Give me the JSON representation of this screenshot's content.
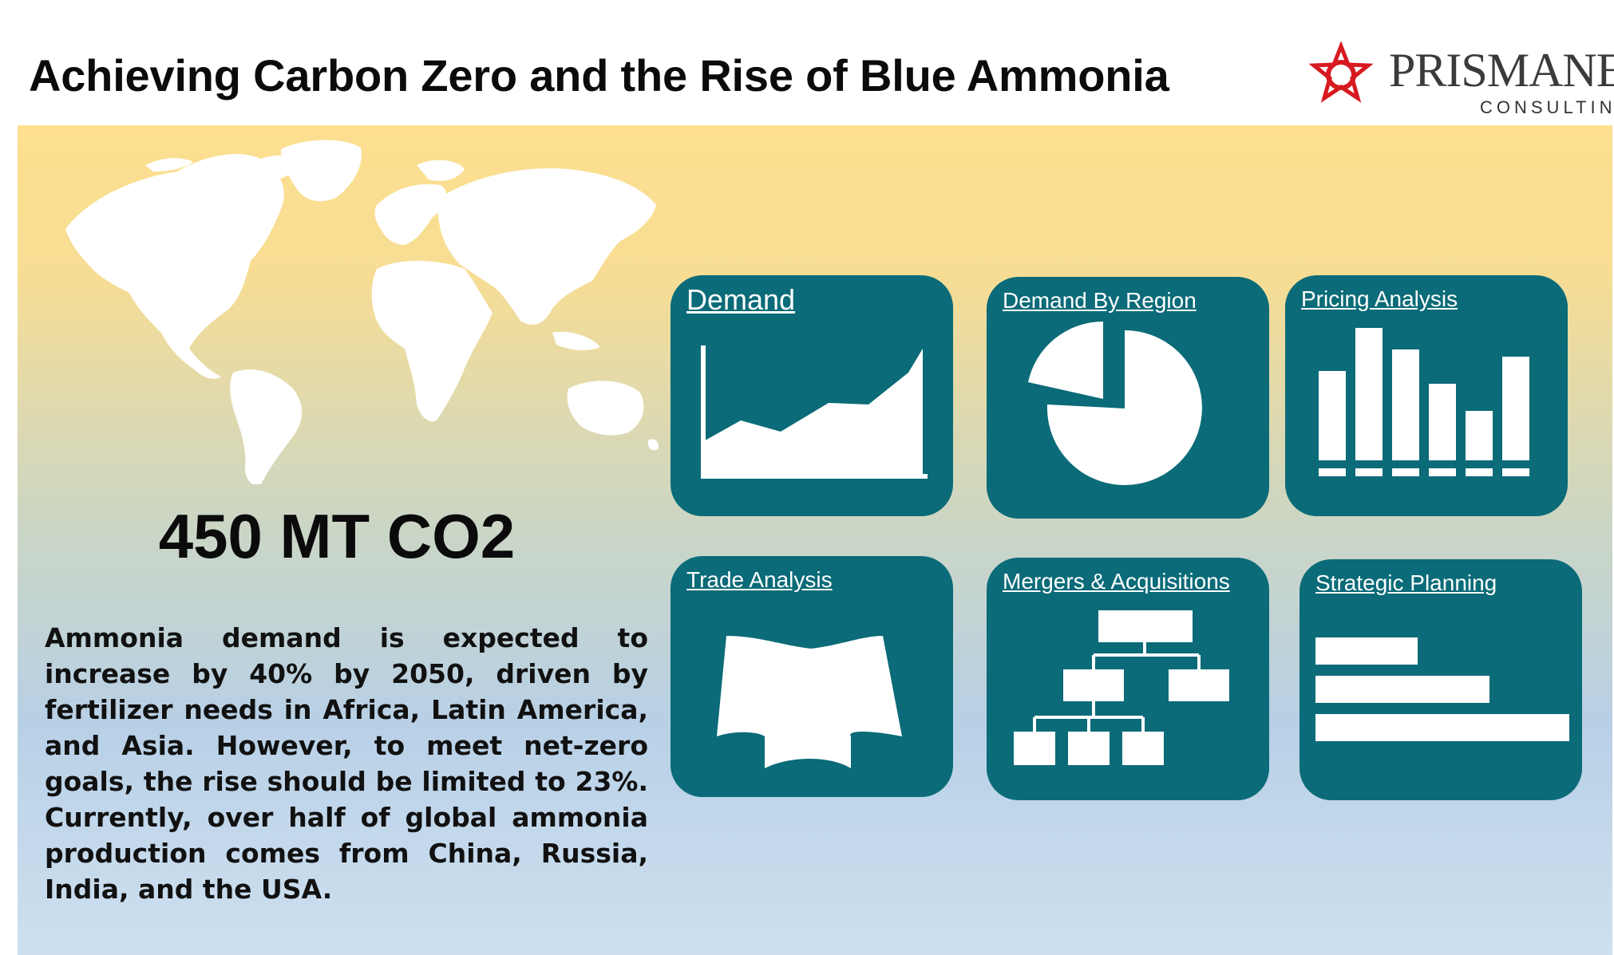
{
  "header": {
    "title": "Achieving Carbon Zero and the Rise of Blue Ammonia"
  },
  "logo": {
    "brand": "PRISMANE",
    "subtitle": "CONSULTING",
    "icon": "star-ring-icon",
    "accent": "#d71920"
  },
  "main": {
    "stat": "450 MT CO2",
    "description": "Ammonia demand is expected to increase by 40% by 2050, driven by fertilizer needs in Africa, Latin America, and Asia. However, to meet net-zero goals, the rise should be limited to 23%. Currently, over half of global ammonia production comes from China, Russia, India, and the USA.",
    "map_icon": "world-map-icon"
  },
  "cards": [
    {
      "label": "Demand",
      "icon": "area-chart-icon"
    },
    {
      "label": "Demand By Region",
      "icon": "pie-chart-icon"
    },
    {
      "label": "Pricing Analysis",
      "icon": "bar-chart-icon"
    },
    {
      "label": "Trade Analysis",
      "icon": "open-map-icon"
    },
    {
      "label": "Mergers & Acquisitions",
      "icon": "org-chart-icon"
    },
    {
      "label": "Strategic Planning",
      "icon": "horizontal-bars-icon"
    }
  ],
  "colors": {
    "card": "#0b6b78",
    "panel_top": "#fddf8f",
    "panel_bottom": "#cee0f0"
  }
}
